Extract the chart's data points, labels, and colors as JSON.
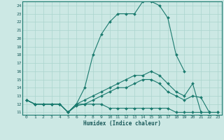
{
  "xlabel": "Humidex (Indice chaleur)",
  "bg_color": "#cce8e4",
  "line_color": "#1a7a6e",
  "grid_color": "#aad4ce",
  "xlim_min": -0.5,
  "xlim_max": 23.5,
  "ylim_min": 10.7,
  "ylim_max": 24.5,
  "xticks": [
    0,
    1,
    2,
    3,
    4,
    5,
    6,
    7,
    8,
    9,
    10,
    11,
    12,
    13,
    14,
    15,
    16,
    17,
    18,
    19,
    20,
    21,
    22,
    23
  ],
  "yticks": [
    11,
    12,
    13,
    14,
    15,
    16,
    17,
    18,
    19,
    20,
    21,
    22,
    23,
    24
  ],
  "curve1_x": [
    0,
    1,
    2,
    3,
    4,
    5,
    6,
    7,
    8,
    9,
    10,
    11,
    12,
    13,
    14,
    15,
    16,
    17,
    18,
    19
  ],
  "curve1_y": [
    12.5,
    12.0,
    12.0,
    12.0,
    12.0,
    11.0,
    12.0,
    14.0,
    18.0,
    20.5,
    22.0,
    23.0,
    23.0,
    23.0,
    24.5,
    24.5,
    24.0,
    22.5,
    18.0,
    16.0
  ],
  "curve2_x": [
    0,
    1,
    2,
    3,
    4,
    5,
    6,
    7,
    8,
    9,
    10,
    11,
    12,
    13,
    14,
    15,
    16,
    17,
    18,
    19,
    20,
    21,
    22
  ],
  "curve2_y": [
    12.5,
    12.0,
    12.0,
    12.0,
    12.0,
    11.0,
    12.0,
    12.5,
    13.0,
    13.5,
    14.0,
    14.5,
    15.0,
    15.5,
    15.5,
    16.0,
    15.5,
    14.5,
    13.5,
    13.0,
    14.5,
    11.0,
    11.0
  ],
  "curve3_x": [
    0,
    1,
    2,
    3,
    4,
    5,
    6,
    7,
    8,
    9,
    10,
    11,
    12,
    13,
    14,
    15,
    16,
    17,
    18,
    19,
    20,
    21,
    22,
    23
  ],
  "curve3_y": [
    12.5,
    12.0,
    12.0,
    12.0,
    12.0,
    11.0,
    12.0,
    12.0,
    12.5,
    13.0,
    13.5,
    14.0,
    14.0,
    14.5,
    15.0,
    15.0,
    14.5,
    13.5,
    13.0,
    12.5,
    13.0,
    12.8,
    11.0,
    11.0
  ],
  "curve4_x": [
    0,
    1,
    2,
    3,
    4,
    5,
    6,
    7,
    8,
    9,
    10,
    11,
    12,
    13,
    14,
    15,
    16,
    17,
    18,
    19,
    20,
    21,
    22,
    23
  ],
  "curve4_y": [
    12.5,
    12.0,
    12.0,
    12.0,
    12.0,
    11.0,
    11.8,
    12.0,
    12.0,
    12.0,
    11.5,
    11.5,
    11.5,
    11.5,
    11.5,
    11.5,
    11.5,
    11.5,
    11.0,
    11.0,
    11.0,
    11.0,
    11.0,
    11.0
  ]
}
